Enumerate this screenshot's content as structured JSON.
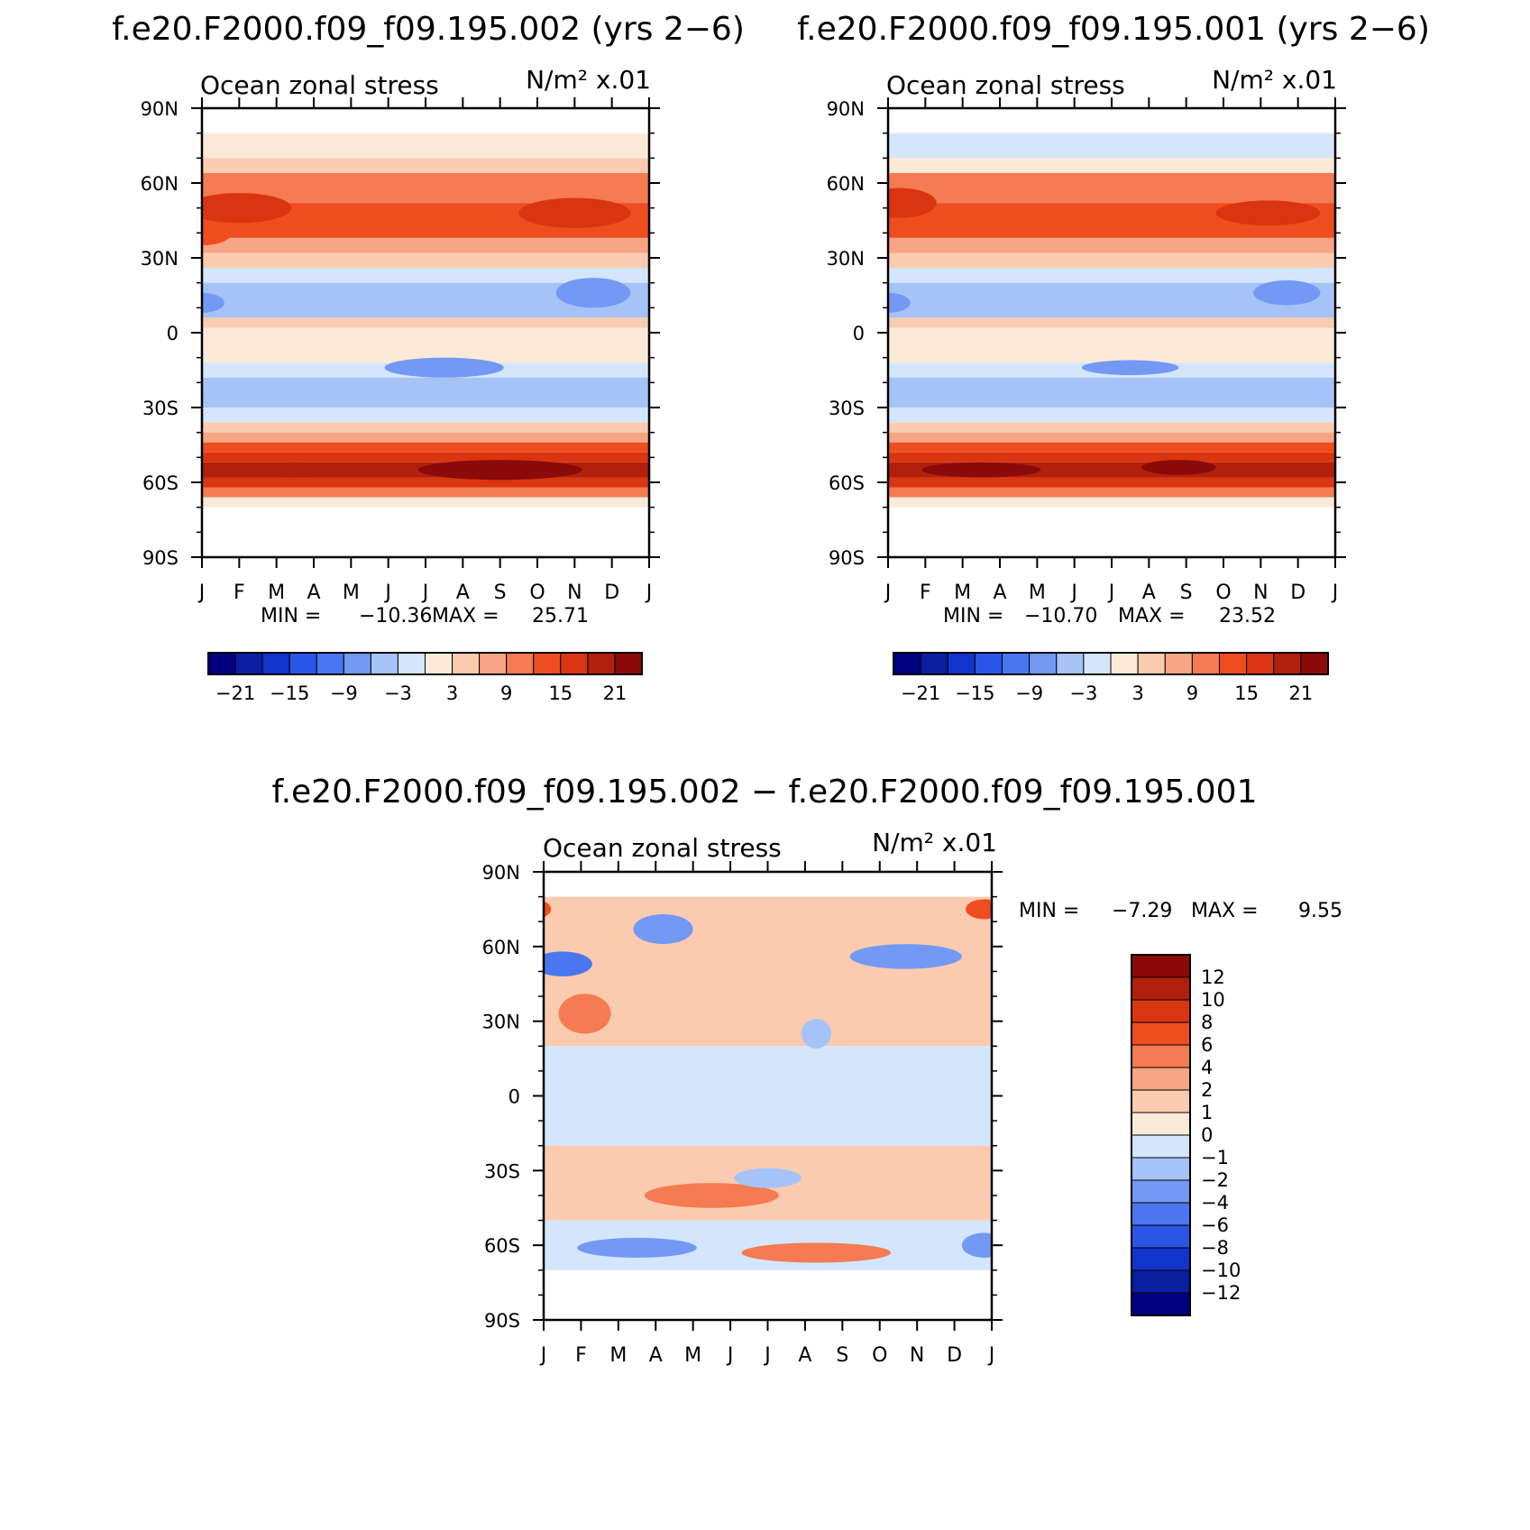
{
  "chart_data": [
    {
      "type": "heatmap",
      "title": "f.e20.F2000.f09_f09.195.002 (yrs 2−6)",
      "left_label": "Ocean zonal stress",
      "right_label": "N/m² x.01",
      "x_ticks": [
        "J",
        "F",
        "M",
        "A",
        "M",
        "J",
        "J",
        "A",
        "S",
        "O",
        "N",
        "D",
        "J"
      ],
      "y_ticks": [
        "90N",
        "60N",
        "30N",
        "0",
        "30S",
        "60S",
        "90S"
      ],
      "ylim": [
        -90,
        90
      ],
      "min_label": "MIN =",
      "min": "−10.36",
      "max_label": "MAX =",
      "max": "25.71",
      "colorbar_labels": [
        "−21",
        "−15",
        "−9",
        "−3",
        "3",
        "9",
        "15",
        "21"
      ],
      "bands": [
        {
          "lat": [
            80,
            70
          ],
          "level": 0
        },
        {
          "lat": [
            70,
            64
          ],
          "level": 1
        },
        {
          "lat": [
            64,
            52
          ],
          "level": 3
        },
        {
          "lat": [
            52,
            38
          ],
          "level": 4
        },
        {
          "lat": [
            38,
            32
          ],
          "level": 2
        },
        {
          "lat": [
            32,
            26
          ],
          "level": 1
        },
        {
          "lat": [
            26,
            20
          ],
          "level": -1
        },
        {
          "lat": [
            20,
            6
          ],
          "level": -2
        },
        {
          "lat": [
            6,
            2
          ],
          "level": 1
        },
        {
          "lat": [
            2,
            -12
          ],
          "level": 0
        },
        {
          "lat": [
            -12,
            -18
          ],
          "level": -1
        },
        {
          "lat": [
            -18,
            -30
          ],
          "level": -2
        },
        {
          "lat": [
            -30,
            -36
          ],
          "level": -1
        },
        {
          "lat": [
            -36,
            -40
          ],
          "level": 1
        },
        {
          "lat": [
            -40,
            -44
          ],
          "level": 2
        },
        {
          "lat": [
            -44,
            -48
          ],
          "level": 4
        },
        {
          "lat": [
            -48,
            -52
          ],
          "level": 5
        },
        {
          "lat": [
            -52,
            -58
          ],
          "level": 6
        },
        {
          "lat": [
            -58,
            -62
          ],
          "level": 5
        },
        {
          "lat": [
            -62,
            -66
          ],
          "level": 3
        },
        {
          "lat": [
            -66,
            -70
          ],
          "level": 0
        }
      ],
      "blobs": [
        {
          "month": 2.0,
          "lat": 50,
          "dm": 1.4,
          "dl": 6,
          "level": 5
        },
        {
          "month": 11.0,
          "lat": 48,
          "dm": 1.5,
          "dl": 6,
          "level": 5
        },
        {
          "month": 1.0,
          "lat": 40,
          "dm": 0.8,
          "dl": 5,
          "level": 4
        },
        {
          "month": 11.5,
          "lat": 16,
          "dm": 1.0,
          "dl": 6,
          "level": -3
        },
        {
          "month": 1.0,
          "lat": 12,
          "dm": 0.6,
          "dl": 4,
          "level": -3
        },
        {
          "month": 7.5,
          "lat": -14,
          "dm": 1.6,
          "dl": 4,
          "level": -3
        },
        {
          "month": 9.0,
          "lat": -55,
          "dm": 2.2,
          "dl": 4,
          "level": 7
        },
        {
          "month": 3.5,
          "lat": -55,
          "dm": 2.5,
          "dl": 3,
          "level": 6
        }
      ]
    },
    {
      "type": "heatmap",
      "title": "f.e20.F2000.f09_f09.195.001 (yrs 2−6)",
      "left_label": "Ocean zonal stress",
      "right_label": "N/m² x.01",
      "x_ticks": [
        "J",
        "F",
        "M",
        "A",
        "M",
        "J",
        "J",
        "A",
        "S",
        "O",
        "N",
        "D",
        "J"
      ],
      "y_ticks": [
        "90N",
        "60N",
        "30N",
        "0",
        "30S",
        "60S",
        "90S"
      ],
      "ylim": [
        -90,
        90
      ],
      "min_label": "MIN =",
      "min": "−10.70",
      "max_label": "MAX =",
      "max": "23.52",
      "colorbar_labels": [
        "−21",
        "−15",
        "−9",
        "−3",
        "3",
        "9",
        "15",
        "21"
      ],
      "bands": [
        {
          "lat": [
            80,
            70
          ],
          "level": -1
        },
        {
          "lat": [
            70,
            64
          ],
          "level": 0
        },
        {
          "lat": [
            64,
            52
          ],
          "level": 3
        },
        {
          "lat": [
            52,
            38
          ],
          "level": 4
        },
        {
          "lat": [
            38,
            32
          ],
          "level": 2
        },
        {
          "lat": [
            32,
            26
          ],
          "level": 1
        },
        {
          "lat": [
            26,
            20
          ],
          "level": -1
        },
        {
          "lat": [
            20,
            6
          ],
          "level": -2
        },
        {
          "lat": [
            6,
            2
          ],
          "level": 1
        },
        {
          "lat": [
            2,
            -12
          ],
          "level": 0
        },
        {
          "lat": [
            -12,
            -18
          ],
          "level": -1
        },
        {
          "lat": [
            -18,
            -30
          ],
          "level": -2
        },
        {
          "lat": [
            -30,
            -36
          ],
          "level": -1
        },
        {
          "lat": [
            -36,
            -40
          ],
          "level": 1
        },
        {
          "lat": [
            -40,
            -44
          ],
          "level": 2
        },
        {
          "lat": [
            -44,
            -48
          ],
          "level": 4
        },
        {
          "lat": [
            -48,
            -52
          ],
          "level": 5
        },
        {
          "lat": [
            -52,
            -58
          ],
          "level": 6
        },
        {
          "lat": [
            -58,
            -62
          ],
          "level": 5
        },
        {
          "lat": [
            -62,
            -66
          ],
          "level": 3
        },
        {
          "lat": [
            -66,
            -70
          ],
          "level": 0
        }
      ],
      "blobs": [
        {
          "month": 1.3,
          "lat": 52,
          "dm": 1.0,
          "dl": 6,
          "level": 5
        },
        {
          "month": 11.2,
          "lat": 48,
          "dm": 1.4,
          "dl": 5,
          "level": 5
        },
        {
          "month": 11.7,
          "lat": 16,
          "dm": 0.9,
          "dl": 5,
          "level": -3
        },
        {
          "month": 1.0,
          "lat": 12,
          "dm": 0.6,
          "dl": 4,
          "level": -3
        },
        {
          "month": 7.5,
          "lat": -14,
          "dm": 1.3,
          "dl": 3,
          "level": -3
        },
        {
          "month": 3.5,
          "lat": -55,
          "dm": 1.6,
          "dl": 3,
          "level": 7
        },
        {
          "month": 8.8,
          "lat": -54,
          "dm": 1.0,
          "dl": 3,
          "level": 7
        }
      ]
    },
    {
      "type": "heatmap",
      "title": "f.e20.F2000.f09_f09.195.002 − f.e20.F2000.f09_f09.195.001",
      "left_label": "Ocean zonal stress",
      "right_label": "N/m² x.01",
      "x_ticks": [
        "J",
        "F",
        "M",
        "A",
        "M",
        "J",
        "J",
        "A",
        "S",
        "O",
        "N",
        "D",
        "J"
      ],
      "y_ticks": [
        "90N",
        "60N",
        "30N",
        "0",
        "30S",
        "60S",
        "90S"
      ],
      "ylim": [
        -90,
        90
      ],
      "min_label": "MIN =",
      "min": "−7.29",
      "max_label": "MAX =",
      "max": "9.55",
      "colorbar_labels": [
        "12",
        "10",
        "8",
        "6",
        "4",
        "2",
        "1",
        "0",
        "−1",
        "−2",
        "−4",
        "−6",
        "−8",
        "−10",
        "−12"
      ],
      "bands": [
        {
          "lat": [
            80,
            50
          ],
          "level": 1
        },
        {
          "lat": [
            50,
            20
          ],
          "level": 1
        },
        {
          "lat": [
            20,
            -20
          ],
          "level": -1
        },
        {
          "lat": [
            -20,
            -40
          ],
          "level": 1
        },
        {
          "lat": [
            -40,
            -50
          ],
          "level": 1
        },
        {
          "lat": [
            -50,
            -70
          ],
          "level": -1
        }
      ],
      "blobs": [
        {
          "month": 1.5,
          "lat": 53,
          "dm": 0.8,
          "dl": 5,
          "level": -4
        },
        {
          "month": 2.1,
          "lat": 33,
          "dm": 0.7,
          "dl": 8,
          "level": 3
        },
        {
          "month": 4.2,
          "lat": 67,
          "dm": 0.8,
          "dl": 6,
          "level": -3
        },
        {
          "month": 10.7,
          "lat": 56,
          "dm": 1.5,
          "dl": 5,
          "level": -3
        },
        {
          "month": 0.7,
          "lat": 75,
          "dm": 0.5,
          "dl": 4,
          "level": 4
        },
        {
          "month": 12.8,
          "lat": 75,
          "dm": 0.5,
          "dl": 4,
          "level": 4
        },
        {
          "month": 8.3,
          "lat": 25,
          "dm": 0.4,
          "dl": 6,
          "level": -2
        },
        {
          "month": 6.5,
          "lat": 0,
          "dm": 3.0,
          "dl": 8,
          "level": -1
        },
        {
          "month": 5.5,
          "lat": -40,
          "dm": 1.8,
          "dl": 5,
          "level": 3
        },
        {
          "month": 8.3,
          "lat": -63,
          "dm": 2.0,
          "dl": 4,
          "level": 3
        },
        {
          "month": 3.5,
          "lat": -61,
          "dm": 1.6,
          "dl": 4,
          "level": -3
        },
        {
          "month": 7.0,
          "lat": -33,
          "dm": 0.9,
          "dl": 4,
          "level": -2
        },
        {
          "month": 12.8,
          "lat": -60,
          "dm": 0.6,
          "dl": 5,
          "level": -3
        }
      ]
    }
  ],
  "colorbar_colors": {
    "full": [
      "#000080",
      "#0a1ea0",
      "#1233cc",
      "#2a55e6",
      "#4a77f0",
      "#7399f5",
      "#a6c3f8",
      "#d4e6fb",
      "#fcead8",
      "#fbcbb0",
      "#f7a584",
      "#f47b52",
      "#ee4d1f",
      "#d93510",
      "#b0200c",
      "#8b0a0a"
    ],
    "diff": [
      "#8b0a0a",
      "#b0200c",
      "#d93510",
      "#ee4d1f",
      "#f47b52",
      "#f7a584",
      "#fbcbb0",
      "#fcead8",
      "#d4e6fb",
      "#a6c3f8",
      "#7399f5",
      "#4a77f0",
      "#2a55e6",
      "#1233cc",
      "#0a1ea0",
      "#000080"
    ]
  }
}
